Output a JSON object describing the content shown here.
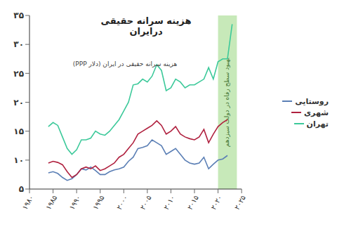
{
  "chart_data": {
    "type": "line",
    "title": "هزینه سرانه حقیقی درایران",
    "subtitle": "هزینه سرانه حقیقی در ایران (دلار PPP)",
    "x": [
      1984,
      1985,
      1986,
      1987,
      1988,
      1989,
      1990,
      1991,
      1992,
      1993,
      1994,
      1995,
      1996,
      1997,
      1998,
      1999,
      2000,
      2001,
      2002,
      2003,
      2004,
      2005,
      2006,
      2007,
      2008,
      2009,
      2010,
      2011,
      2012,
      2013,
      2014,
      2015,
      2016,
      2017,
      2018,
      2019,
      2020,
      2021,
      2022,
      2023
    ],
    "series": [
      {
        "name": "روستایی",
        "color": "#5b7fb5",
        "values": [
          7.8,
          8,
          7.7,
          7,
          6.5,
          6.8,
          7.5,
          8.5,
          8.3,
          8.8,
          8.2,
          7.5,
          7.5,
          8,
          8.3,
          8.5,
          8.8,
          9.8,
          10.5,
          12,
          12.2,
          12.5,
          13.5,
          13,
          12.5,
          11,
          11.5,
          12,
          11,
          10,
          9.5,
          9.3,
          9.5,
          10.5,
          8.5,
          9.3,
          10,
          10.2,
          10.8,
          null
        ]
      },
      {
        "name": "شهری",
        "color": "#b0213f",
        "values": [
          9.5,
          9.8,
          9.6,
          9.2,
          8,
          7,
          7.5,
          8.5,
          8.8,
          8.5,
          9,
          8.2,
          8.5,
          9,
          9.5,
          10.5,
          11,
          12,
          13,
          14.5,
          15,
          15.5,
          16,
          16.8,
          16,
          14.5,
          15,
          15.8,
          14.5,
          14,
          13.7,
          13.5,
          14,
          15.3,
          13,
          14.5,
          15.8,
          16.5,
          17,
          null
        ]
      },
      {
        "name": "تهران",
        "color": "#3cc99a",
        "values": [
          15.8,
          16.5,
          16,
          14,
          12,
          11,
          11.8,
          13.5,
          13.5,
          13.8,
          15,
          14.5,
          14.3,
          15,
          16,
          17,
          18.5,
          20,
          23,
          23.2,
          24,
          23.5,
          24.5,
          26.5,
          25.5,
          22,
          22.5,
          24,
          23.5,
          22.5,
          23,
          23,
          23.5,
          24,
          26,
          24,
          27,
          27.5,
          27.5,
          33.5
        ]
      }
    ],
    "xlim": [
      1980,
      2025
    ],
    "xticks": [
      {
        "value": 1980,
        "label": "۱۹۸۰"
      },
      {
        "value": 1985,
        "label": "۱۹۸۵"
      },
      {
        "value": 1990,
        "label": "۱۹۹۰"
      },
      {
        "value": 1995,
        "label": "۱۹۹۵"
      },
      {
        "value": 2000,
        "label": "۲۰۰۰"
      },
      {
        "value": 2005,
        "label": "۲۰۰۵"
      },
      {
        "value": 2010,
        "label": "۲۰۱۰"
      },
      {
        "value": 2015,
        "label": "۲۰۱۵"
      },
      {
        "value": 2020,
        "label": "۲۰۲۰"
      },
      {
        "value": 2025,
        "label": "۲۰۲۵"
      }
    ],
    "ylim": [
      5,
      35
    ],
    "yticks": [
      {
        "value": 5,
        "label": "۵"
      },
      {
        "value": 10,
        "label": "۱۰"
      },
      {
        "value": 15,
        "label": "۱۵"
      },
      {
        "value": 20,
        "label": "۲۰"
      },
      {
        "value": 25,
        "label": "۲۵"
      },
      {
        "value": 30,
        "label": "۳۰"
      },
      {
        "value": 35,
        "label": "۳۵"
      }
    ],
    "grid": false,
    "legend": "right",
    "annotations": [
      {
        "text": "بهبود سطح رفاه در دولت سیزدهم",
        "x_start": 2020,
        "x_end": 2024
      }
    ]
  }
}
